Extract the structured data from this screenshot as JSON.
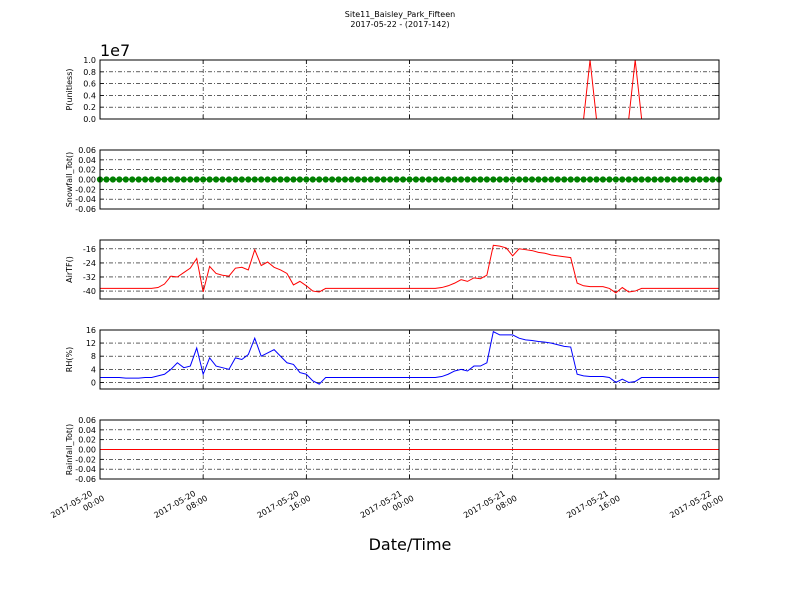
{
  "chart_data": {
    "type": "line",
    "title": "Site11_Baisley_Park_Fifteen",
    "subtitle": "2017-05-22 - (2017-142)",
    "xlabel": "Date/Time",
    "grid": true,
    "xlim": [
      "2017-05-20 00:00",
      "2017-05-22 00:00"
    ],
    "xticks": [
      "2017-05-20 00:00",
      "2017-05-20 08:00",
      "2017-05-20 16:00",
      "2017-05-21 00:00",
      "2017-05-21 08:00",
      "2017-05-21 16:00",
      "2017-05-22 00:00"
    ],
    "x": [
      "2017-05-20 00:00",
      "2017-05-20 00:30",
      "2017-05-20 01:00",
      "2017-05-20 01:30",
      "2017-05-20 02:00",
      "2017-05-20 02:30",
      "2017-05-20 03:00",
      "2017-05-20 03:30",
      "2017-05-20 04:00",
      "2017-05-20 04:30",
      "2017-05-20 05:00",
      "2017-05-20 05:30",
      "2017-05-20 06:00",
      "2017-05-20 06:30",
      "2017-05-20 07:00",
      "2017-05-20 07:30",
      "2017-05-20 08:00",
      "2017-05-20 08:30",
      "2017-05-20 09:00",
      "2017-05-20 09:30",
      "2017-05-20 10:00",
      "2017-05-20 10:30",
      "2017-05-20 11:00",
      "2017-05-20 11:30",
      "2017-05-20 12:00",
      "2017-05-20 12:30",
      "2017-05-20 13:00",
      "2017-05-20 13:30",
      "2017-05-20 14:00",
      "2017-05-20 14:30",
      "2017-05-20 15:00",
      "2017-05-20 15:30",
      "2017-05-20 16:00",
      "2017-05-20 16:30",
      "2017-05-20 17:00",
      "2017-05-20 17:30",
      "2017-05-20 18:00",
      "2017-05-20 18:30",
      "2017-05-20 19:00",
      "2017-05-20 19:30",
      "2017-05-20 20:00",
      "2017-05-20 20:30",
      "2017-05-20 21:00",
      "2017-05-20 21:30",
      "2017-05-20 22:00",
      "2017-05-20 22:30",
      "2017-05-20 23:00",
      "2017-05-20 23:30",
      "2017-05-21 00:00",
      "2017-05-21 00:30",
      "2017-05-21 01:00",
      "2017-05-21 01:30",
      "2017-05-21 02:00",
      "2017-05-21 02:30",
      "2017-05-21 03:00",
      "2017-05-21 03:30",
      "2017-05-21 04:00",
      "2017-05-21 04:30",
      "2017-05-21 05:00",
      "2017-05-21 05:30",
      "2017-05-21 06:00",
      "2017-05-21 06:30",
      "2017-05-21 07:00",
      "2017-05-21 07:30",
      "2017-05-21 08:00",
      "2017-05-21 08:30",
      "2017-05-21 09:00",
      "2017-05-21 09:30",
      "2017-05-21 10:00",
      "2017-05-21 10:30",
      "2017-05-21 11:00",
      "2017-05-21 11:30",
      "2017-05-21 12:00",
      "2017-05-21 12:30",
      "2017-05-21 13:00",
      "2017-05-21 13:30",
      "2017-05-21 14:00",
      "2017-05-21 14:30",
      "2017-05-21 15:00",
      "2017-05-21 15:30",
      "2017-05-21 16:00",
      "2017-05-21 16:30",
      "2017-05-21 17:00",
      "2017-05-21 17:30",
      "2017-05-21 18:00",
      "2017-05-21 18:30",
      "2017-05-21 19:00",
      "2017-05-21 19:30",
      "2017-05-21 20:00",
      "2017-05-21 20:30",
      "2017-05-21 21:00",
      "2017-05-21 21:30",
      "2017-05-21 22:00",
      "2017-05-21 22:30",
      "2017-05-21 23:00",
      "2017-05-21 23:30",
      "2017-05-22 00:00"
    ],
    "panels": [
      {
        "ylabel": "P(unitless)",
        "offset_label": "1e7",
        "color": "#ff0000",
        "ylim": [
          0,
          1
        ],
        "yticks": [
          {
            "value": 0,
            "label": "0.0"
          },
          0.2,
          0.4,
          0.6,
          0.8,
          {
            "value": 1,
            "label": "1.0"
          }
        ],
        "values": [
          0,
          0,
          0,
          0,
          0,
          0,
          0,
          0,
          0,
          0,
          0,
          0,
          0,
          0,
          0,
          0,
          0,
          0,
          0,
          0,
          0,
          0,
          0,
          0,
          0,
          0,
          0,
          0,
          0,
          0,
          0,
          0,
          0,
          0,
          0,
          0,
          0,
          0,
          0,
          0,
          0,
          0,
          0,
          0,
          0,
          0,
          0,
          0,
          0,
          0,
          0,
          0,
          0,
          0,
          0,
          0,
          0,
          0,
          0,
          0,
          0,
          0,
          0,
          0,
          0,
          0,
          0,
          0,
          0,
          0,
          0,
          0,
          0,
          0,
          0,
          0,
          1,
          0,
          0,
          0,
          0,
          0,
          0,
          1,
          0,
          0,
          0,
          0,
          0,
          0,
          0,
          0,
          0,
          0,
          0,
          0,
          0
        ]
      },
      {
        "ylabel": "Snowfall_Tot()",
        "color": "#008000",
        "marker": "o",
        "ylim": [
          -0.06,
          0.06
        ],
        "yticks": [
          -0.06,
          -0.04,
          -0.02,
          {
            "value": 0,
            "label": "0.00"
          },
          0.02,
          0.04,
          0.06
        ],
        "values": [
          0,
          0,
          0,
          0,
          0,
          0,
          0,
          0,
          0,
          0,
          0,
          0,
          0,
          0,
          0,
          0,
          0,
          0,
          0,
          0,
          0,
          0,
          0,
          0,
          0,
          0,
          0,
          0,
          0,
          0,
          0,
          0,
          0,
          0,
          0,
          0,
          0,
          0,
          0,
          0,
          0,
          0,
          0,
          0,
          0,
          0,
          0,
          0,
          0,
          0,
          0,
          0,
          0,
          0,
          0,
          0,
          0,
          0,
          0,
          0,
          0,
          0,
          0,
          0,
          0,
          0,
          0,
          0,
          0,
          0,
          0,
          0,
          0,
          0,
          0,
          0,
          0,
          0,
          0,
          0,
          0,
          0,
          0,
          0,
          0,
          0,
          0,
          0,
          0,
          0,
          0,
          0,
          0,
          0,
          0,
          0,
          0
        ]
      },
      {
        "ylabel": "AirTF()",
        "color": "#ff0000",
        "ylim": [
          -44.5,
          -11
        ],
        "yticks": [
          -40,
          -32,
          -24,
          -16
        ],
        "values": [
          -38.5,
          -38.5,
          -38.5,
          -38.5,
          -38.5,
          -38.5,
          -38.5,
          -38.5,
          -38.5,
          -38,
          -36,
          -31.5,
          -32,
          -29.5,
          -27,
          -21.5,
          -40.5,
          -26,
          -30,
          -31,
          -31.5,
          -27,
          -26.5,
          -28,
          -16.5,
          -25.5,
          -23.5,
          -26.5,
          -28,
          -30,
          -36.5,
          -34.5,
          -37,
          -40,
          -40.5,
          -38.5,
          -38.5,
          -38.5,
          -38.5,
          -38.5,
          -38.5,
          -38.5,
          -38.5,
          -38.5,
          -38.5,
          -38.5,
          -38.5,
          -38.5,
          -38.5,
          -38.5,
          -38.5,
          -38.5,
          -38.5,
          -38,
          -37,
          -35.5,
          -33.5,
          -34.5,
          -32.5,
          -33,
          -31,
          -14,
          -14.5,
          -15.5,
          -20,
          -16,
          -16.5,
          -17,
          -18,
          -18.5,
          -19.5,
          -20,
          -20.5,
          -21,
          -35.5,
          -37,
          -37.5,
          -37.5,
          -37.5,
          -38.5,
          -41,
          -38,
          -40.5,
          -40,
          -38.5,
          -38.5,
          -38.5,
          -38.5,
          -38.5,
          -38.5,
          -38.5,
          -38.5,
          -38.5,
          -38.5,
          -38.5,
          -38.5,
          -38.5
        ]
      },
      {
        "ylabel": "RH(%)",
        "color": "#0000ff",
        "ylim": [
          -2,
          16
        ],
        "yticks": [
          0,
          4,
          8,
          12,
          16
        ],
        "values": [
          1.5,
          1.5,
          1.5,
          1.5,
          1.3,
          1.3,
          1.3,
          1.5,
          1.5,
          2,
          2.5,
          4,
          6,
          4.5,
          5,
          10.5,
          2.5,
          7.5,
          5,
          4.5,
          4,
          7.5,
          7,
          8.5,
          13.5,
          8,
          9,
          10,
          8,
          6,
          5.5,
          3,
          2.5,
          0.5,
          -0.5,
          1.5,
          1.5,
          1.5,
          1.5,
          1.5,
          1.5,
          1.5,
          1.5,
          1.5,
          1.5,
          1.5,
          1.5,
          1.5,
          1.5,
          1.5,
          1.5,
          1.5,
          1.5,
          1.8,
          2.5,
          3.5,
          4,
          3.5,
          5,
          5,
          6,
          15.5,
          14.5,
          14.5,
          14.5,
          13.5,
          13,
          12.8,
          12.5,
          12.3,
          12,
          11.5,
          11,
          10.8,
          2.5,
          2,
          1.8,
          1.8,
          1.8,
          1.5,
          0,
          1,
          0,
          0.3,
          1.5,
          1.5,
          1.5,
          1.5,
          1.5,
          1.5,
          1.5,
          1.5,
          1.5,
          1.5,
          1.5,
          1.5,
          1.5
        ]
      },
      {
        "ylabel": "Rainfall_Tot()",
        "color": "#ff0000",
        "ylim": [
          -0.06,
          0.06
        ],
        "yticks": [
          -0.06,
          -0.04,
          -0.02,
          {
            "value": 0,
            "label": "0.00"
          },
          0.02,
          0.04,
          0.06
        ],
        "values": [
          0,
          0,
          0,
          0,
          0,
          0,
          0,
          0,
          0,
          0,
          0,
          0,
          0,
          0,
          0,
          0,
          0,
          0,
          0,
          0,
          0,
          0,
          0,
          0,
          0,
          0,
          0,
          0,
          0,
          0,
          0,
          0,
          0,
          0,
          0,
          0,
          0,
          0,
          0,
          0,
          0,
          0,
          0,
          0,
          0,
          0,
          0,
          0,
          0,
          0,
          0,
          0,
          0,
          0,
          0,
          0,
          0,
          0,
          0,
          0,
          0,
          0,
          0,
          0,
          0,
          0,
          0,
          0,
          0,
          0,
          0,
          0,
          0,
          0,
          0,
          0,
          0,
          0,
          0,
          0,
          0,
          0,
          0,
          0,
          0,
          0,
          0,
          0,
          0,
          0,
          0,
          0,
          0,
          0,
          0,
          0,
          0
        ]
      }
    ]
  }
}
